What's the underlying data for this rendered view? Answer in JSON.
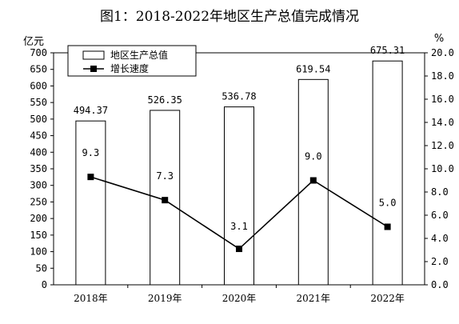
{
  "chart_data": {
    "type": "bar+line",
    "title": "图1：2018-2022年地区生产总值完成情况",
    "categories": [
      "2018年",
      "2019年",
      "2020年",
      "2021年",
      "2022年"
    ],
    "series": [
      {
        "name": "地区生产总值",
        "type": "bar",
        "axis": "left",
        "values": [
          494.37,
          526.35,
          536.78,
          619.54,
          675.31
        ],
        "labels": [
          "494.37",
          "526.35",
          "536.78",
          "619.54",
          "675.31"
        ]
      },
      {
        "name": "增长速度",
        "type": "line",
        "axis": "right",
        "values": [
          9.3,
          7.3,
          3.1,
          9.0,
          5.0
        ],
        "labels": [
          "9.3",
          "7.3",
          "3.1",
          "9.0",
          "5.0"
        ]
      }
    ],
    "y_left": {
      "unit": "亿元",
      "ylim": [
        0,
        700
      ],
      "ticks": [
        "0",
        "50",
        "100",
        "150",
        "200",
        "250",
        "300",
        "350",
        "400",
        "450",
        "500",
        "550",
        "600",
        "650",
        "700"
      ]
    },
    "y_right": {
      "unit": "%",
      "ylim": [
        0,
        20
      ],
      "ticks": [
        "0.0",
        "2.0",
        "4.0",
        "6.0",
        "8.0",
        "10.0",
        "12.0",
        "14.0",
        "16.0",
        "18.0",
        "20.0"
      ]
    },
    "grid": false,
    "legend": "top-left",
    "colors": {
      "bar_fill": "#ffffff",
      "bar_stroke": "#000000",
      "line": "#000000",
      "marker": "#000000"
    }
  }
}
